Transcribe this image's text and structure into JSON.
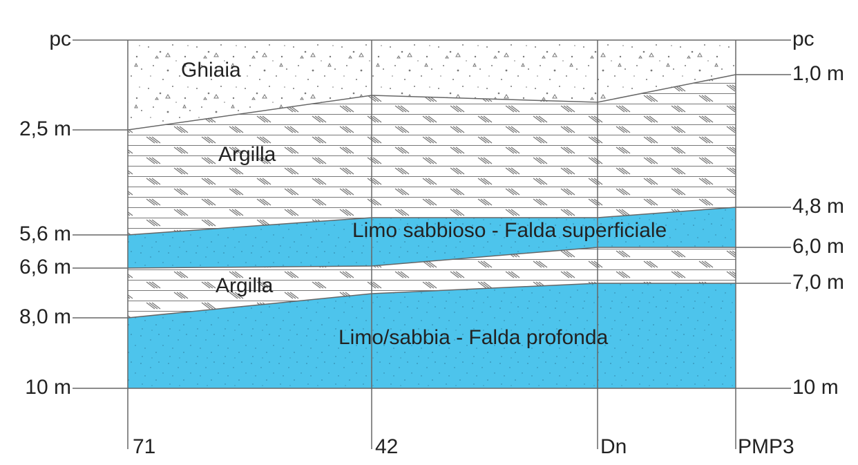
{
  "left_labels": [
    "pc",
    "2,5 m",
    "5,6 m",
    "6,6 m",
    "8,0 m",
    "10 m"
  ],
  "right_labels": [
    "pc",
    "1,0 m",
    "4,8 m",
    "6,0 m",
    "7,0 m",
    "10 m"
  ],
  "layers": [
    "Ghiaia",
    "Argilla",
    "Limo sabbioso - Falda superficiale",
    "Argilla",
    "Limo/sabbia - Falda profonda"
  ],
  "boreholes": [
    "71",
    "42",
    "Dn",
    "PMP3"
  ]
}
